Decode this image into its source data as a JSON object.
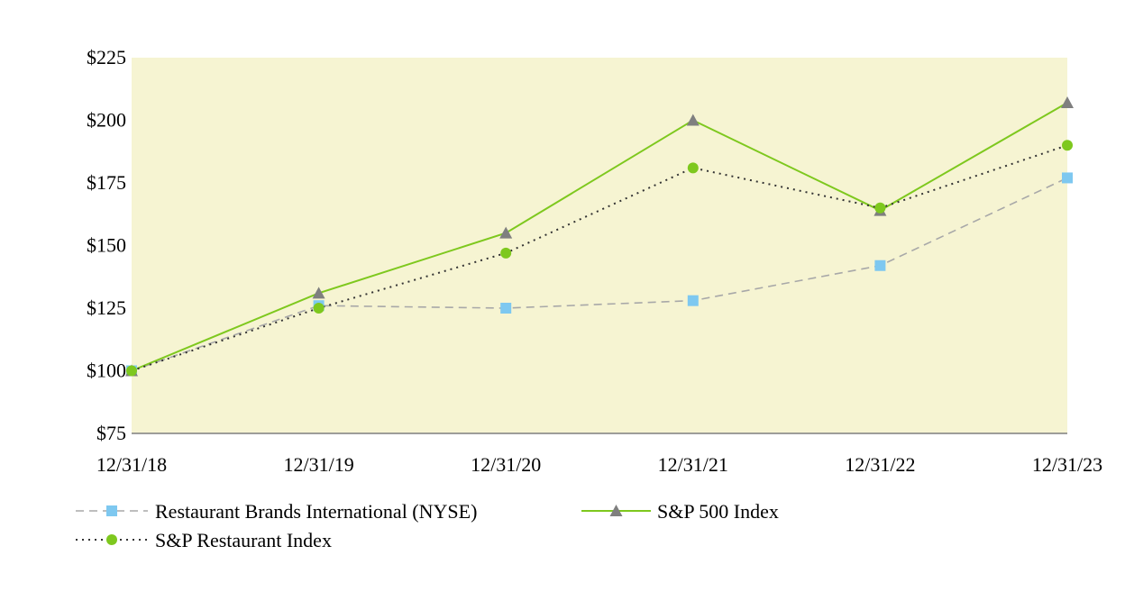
{
  "chart_data": {
    "type": "line",
    "title": "",
    "xlabel": "",
    "ylabel": "",
    "categories": [
      "12/31/18",
      "12/31/19",
      "12/31/20",
      "12/31/21",
      "12/31/22",
      "12/31/23"
    ],
    "ylim": [
      75,
      225
    ],
    "yticks": [
      75,
      100,
      125,
      150,
      175,
      200,
      225
    ],
    "ytick_labels": [
      "$75",
      "$100",
      "$125",
      "$150",
      "$175",
      "$200",
      "$225"
    ],
    "grid": false,
    "legend_position": "bottom",
    "plot_background": "#f6f4d2",
    "series": [
      {
        "name": "Restaurant Brands International (NYSE)",
        "values": [
          100,
          126,
          125,
          128,
          142,
          177
        ],
        "color": "#a8a8a8",
        "marker": "square",
        "marker_color": "#7ec8f0",
        "line_style": "dashed"
      },
      {
        "name": "S&P 500 Index",
        "values": [
          100,
          131,
          155,
          200,
          164,
          207
        ],
        "color": "#7ec81e",
        "marker": "triangle",
        "marker_color": "#7f7f7f",
        "line_style": "solid"
      },
      {
        "name": "S&P Restaurant Index",
        "values": [
          100,
          125,
          147,
          181,
          165,
          190
        ],
        "color": "#333333",
        "marker": "circle",
        "marker_color": "#7ec81e",
        "line_style": "dotted"
      }
    ]
  }
}
